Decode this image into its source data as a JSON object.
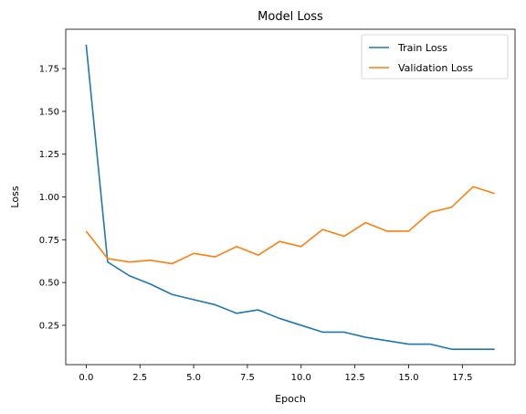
{
  "chart_data": {
    "type": "line",
    "title": "Model Loss",
    "xlabel": "Epoch",
    "ylabel": "Loss",
    "xlim": [
      -0.95,
      19.95
    ],
    "ylim": [
      0.02,
      1.98
    ],
    "xticks": [
      0,
      2.5,
      5,
      7.5,
      10,
      12.5,
      15,
      17.5
    ],
    "xtick_labels": [
      "0.0",
      "2.5",
      "5.0",
      "7.5",
      "10.0",
      "12.5",
      "15.0",
      "17.5"
    ],
    "yticks": [
      0.25,
      0.5,
      0.75,
      1.0,
      1.25,
      1.5,
      1.75
    ],
    "ytick_labels": [
      "0.25",
      "0.50",
      "0.75",
      "1.00",
      "1.25",
      "1.50",
      "1.75"
    ],
    "grid": false,
    "legend_position": "upper right",
    "x": [
      0,
      1,
      2,
      3,
      4,
      5,
      6,
      7,
      8,
      9,
      10,
      11,
      12,
      13,
      14,
      15,
      16,
      17,
      18,
      19
    ],
    "series": [
      {
        "name": "Train Loss",
        "color": "#1f77b4",
        "values": [
          1.89,
          0.62,
          0.54,
          0.49,
          0.43,
          0.4,
          0.37,
          0.32,
          0.34,
          0.29,
          0.25,
          0.21,
          0.21,
          0.18,
          0.16,
          0.14,
          0.14,
          0.11,
          0.11,
          0.11
        ]
      },
      {
        "name": "Validation Loss",
        "color": "#ff7f0e",
        "values": [
          0.8,
          0.64,
          0.62,
          0.63,
          0.61,
          0.67,
          0.65,
          0.71,
          0.66,
          0.74,
          0.71,
          0.81,
          0.77,
          0.85,
          0.8,
          0.8,
          0.91,
          0.94,
          1.06,
          1.02
        ]
      }
    ]
  }
}
